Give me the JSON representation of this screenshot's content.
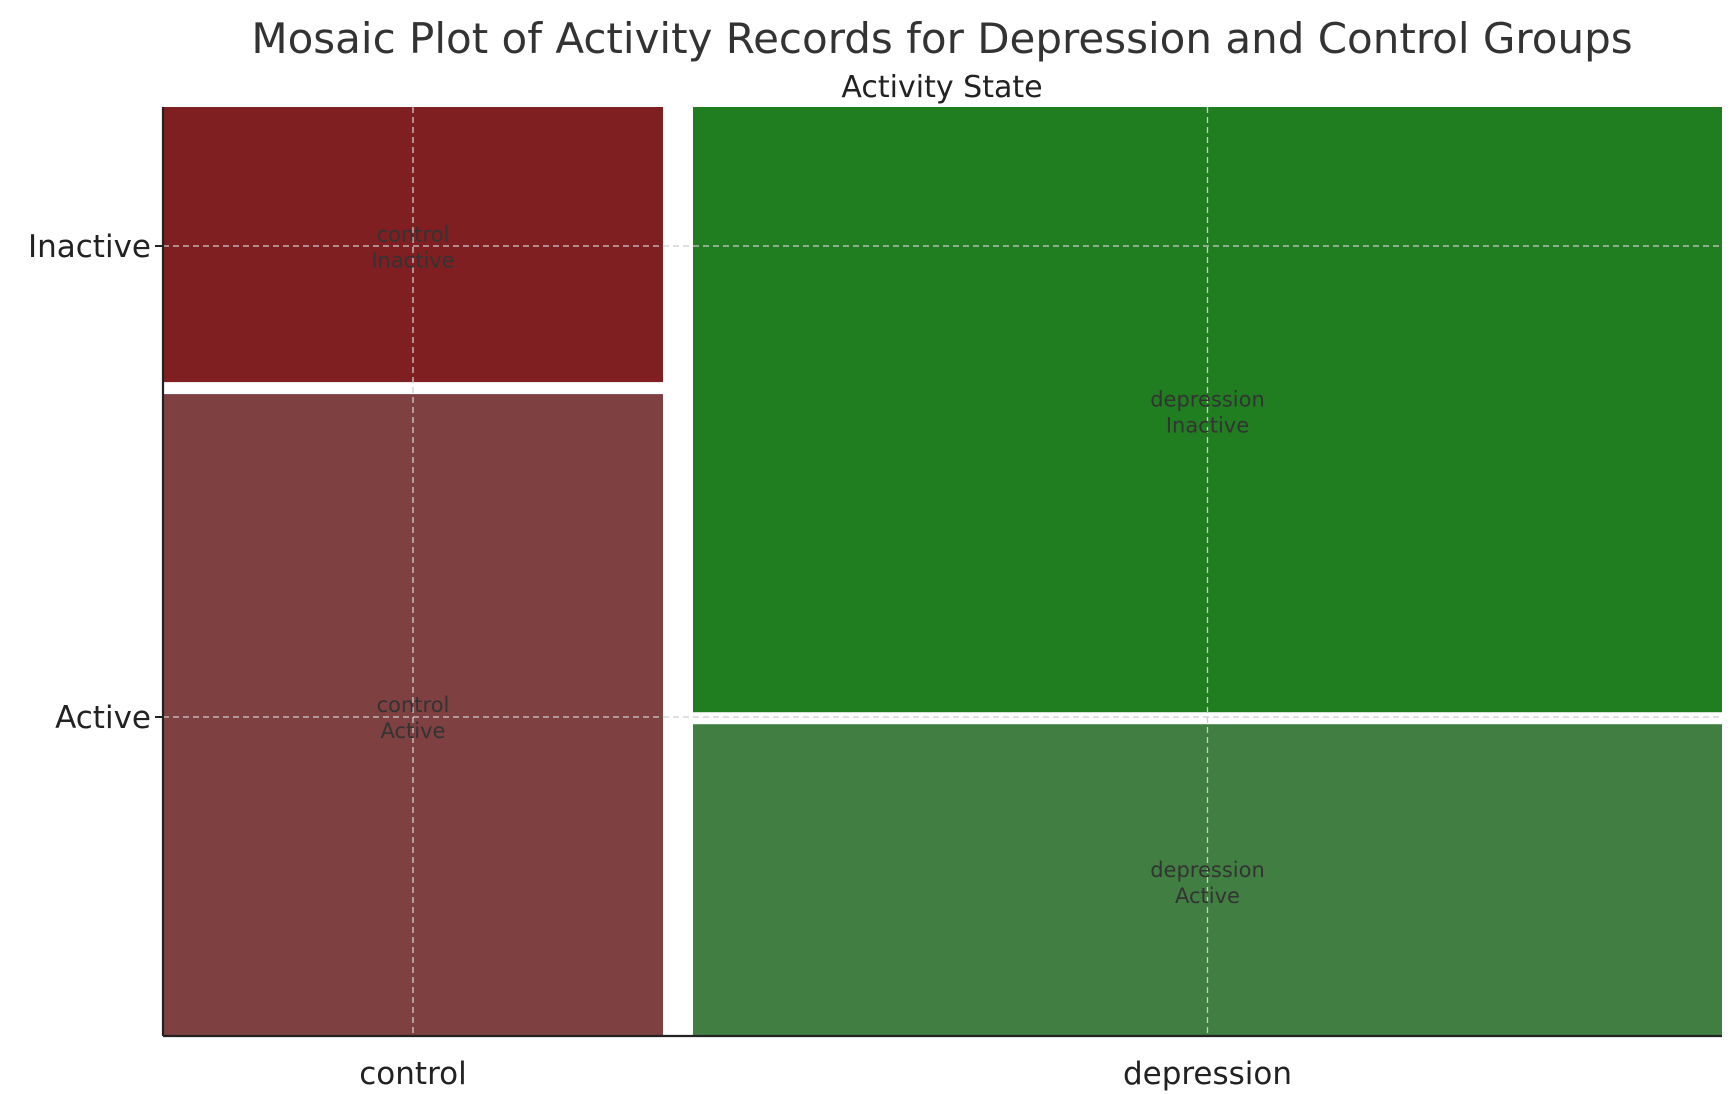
{
  "chart_data": {
    "type": "mosaic",
    "title": "Mosaic Plot of Activity Records for Depression and Control Groups",
    "top_label": "Activity State",
    "x_categories": [
      "control",
      "depression"
    ],
    "y_categories": [
      "Inactive",
      "Active"
    ],
    "column_proportions": [
      0.327,
      0.673
    ],
    "cells": [
      {
        "group": "control",
        "state": "Inactive",
        "fraction": 0.3,
        "label_line1": "control",
        "label_line2": "Inactive",
        "color": "#7f1f21"
      },
      {
        "group": "control",
        "state": "Active",
        "fraction": 0.7,
        "label_line1": "control",
        "label_line2": "Active",
        "color": "#7e4040"
      },
      {
        "group": "depression",
        "state": "Inactive",
        "fraction": 0.66,
        "label_line1": "depression",
        "label_line2": "Inactive",
        "color": "#207e21"
      },
      {
        "group": "depression",
        "state": "Active",
        "fraction": 0.34,
        "label_line1": "depression",
        "label_line2": "Active",
        "color": "#407f41"
      }
    ],
    "grid": true
  }
}
